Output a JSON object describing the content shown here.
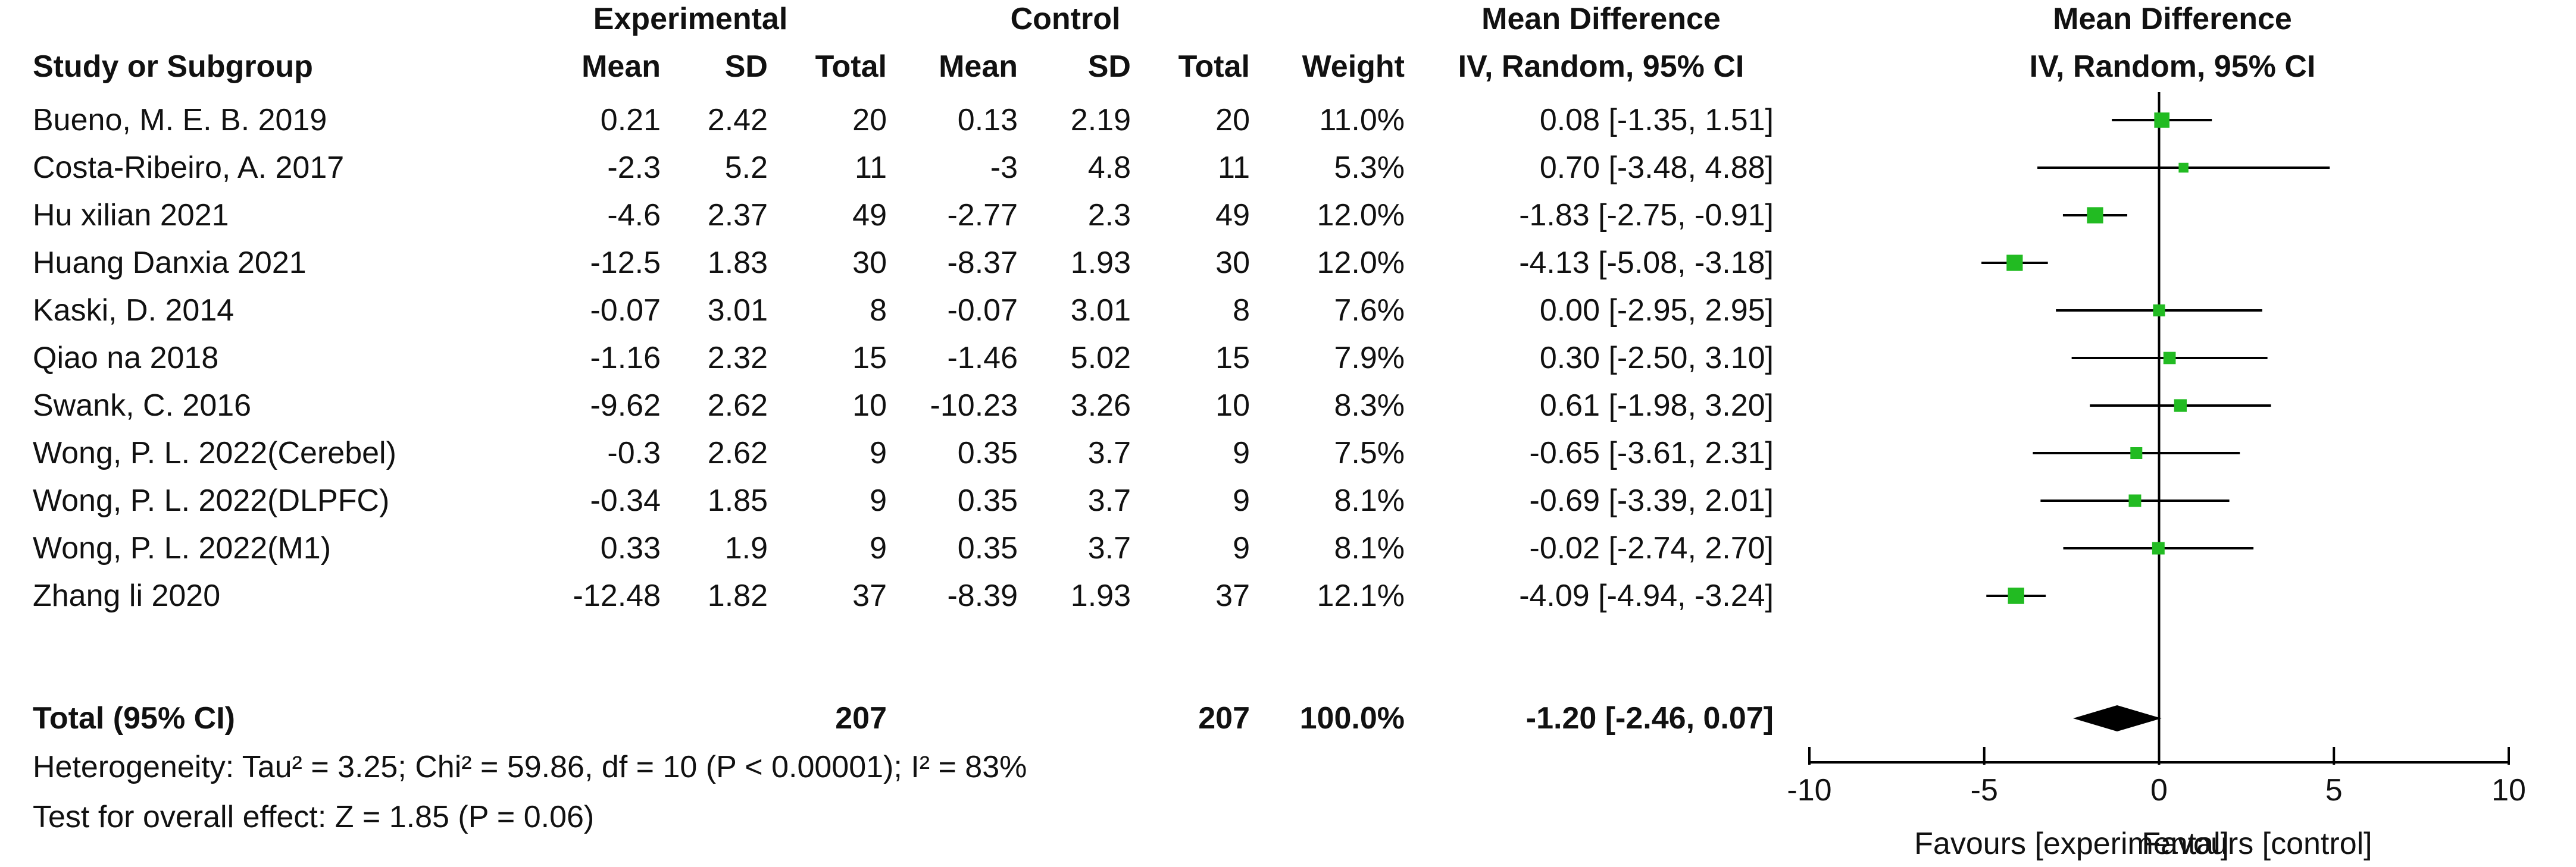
{
  "headers": {
    "group_experimental": "Experimental",
    "group_control": "Control",
    "group_md": "Mean Difference",
    "group_md_plot": "Mean Difference",
    "study": "Study or Subgroup",
    "exp_mean": "Mean",
    "exp_sd": "SD",
    "exp_total": "Total",
    "ctl_mean": "Mean",
    "ctl_sd": "SD",
    "ctl_total": "Total",
    "weight": "Weight",
    "md_method": "IV, Random, 95% CI",
    "md_method_plot": "IV, Random, 95% CI"
  },
  "studies": [
    {
      "name": "Bueno, M. E. B. 2019",
      "exp_mean": "0.21",
      "exp_sd": "2.42",
      "exp_total": "20",
      "ctl_mean": "0.13",
      "ctl_sd": "2.19",
      "ctl_total": "20",
      "weight": "11.0%",
      "ci_text": "0.08 [-1.35, 1.51]"
    },
    {
      "name": "Costa-Ribeiro, A. 2017",
      "exp_mean": "-2.3",
      "exp_sd": "5.2",
      "exp_total": "11",
      "ctl_mean": "-3",
      "ctl_sd": "4.8",
      "ctl_total": "11",
      "weight": "5.3%",
      "ci_text": "0.70 [-3.48, 4.88]"
    },
    {
      "name": "Hu xilian 2021",
      "exp_mean": "-4.6",
      "exp_sd": "2.37",
      "exp_total": "49",
      "ctl_mean": "-2.77",
      "ctl_sd": "2.3",
      "ctl_total": "49",
      "weight": "12.0%",
      "ci_text": "-1.83 [-2.75, -0.91]"
    },
    {
      "name": "Huang Danxia 2021",
      "exp_mean": "-12.5",
      "exp_sd": "1.83",
      "exp_total": "30",
      "ctl_mean": "-8.37",
      "ctl_sd": "1.93",
      "ctl_total": "30",
      "weight": "12.0%",
      "ci_text": "-4.13 [-5.08, -3.18]"
    },
    {
      "name": "Kaski, D. 2014",
      "exp_mean": "-0.07",
      "exp_sd": "3.01",
      "exp_total": "8",
      "ctl_mean": "-0.07",
      "ctl_sd": "3.01",
      "ctl_total": "8",
      "weight": "7.6%",
      "ci_text": "0.00 [-2.95, 2.95]"
    },
    {
      "name": "Qiao na 2018",
      "exp_mean": "-1.16",
      "exp_sd": "2.32",
      "exp_total": "15",
      "ctl_mean": "-1.46",
      "ctl_sd": "5.02",
      "ctl_total": "15",
      "weight": "7.9%",
      "ci_text": "0.30 [-2.50, 3.10]"
    },
    {
      "name": "Swank, C. 2016",
      "exp_mean": "-9.62",
      "exp_sd": "2.62",
      "exp_total": "10",
      "ctl_mean": "-10.23",
      "ctl_sd": "3.26",
      "ctl_total": "10",
      "weight": "8.3%",
      "ci_text": "0.61 [-1.98, 3.20]"
    },
    {
      "name": "Wong, P. L. 2022(Cerebel)",
      "exp_mean": "-0.3",
      "exp_sd": "2.62",
      "exp_total": "9",
      "ctl_mean": "0.35",
      "ctl_sd": "3.7",
      "ctl_total": "9",
      "weight": "7.5%",
      "ci_text": "-0.65 [-3.61, 2.31]"
    },
    {
      "name": "Wong, P. L. 2022(DLPFC)",
      "exp_mean": "-0.34",
      "exp_sd": "1.85",
      "exp_total": "9",
      "ctl_mean": "0.35",
      "ctl_sd": "3.7",
      "ctl_total": "9",
      "weight": "8.1%",
      "ci_text": "-0.69 [-3.39, 2.01]"
    },
    {
      "name": "Wong, P. L. 2022(M1)",
      "exp_mean": "0.33",
      "exp_sd": "1.9",
      "exp_total": "9",
      "ctl_mean": "0.35",
      "ctl_sd": "3.7",
      "ctl_total": "9",
      "weight": "8.1%",
      "ci_text": "-0.02 [-2.74, 2.70]"
    },
    {
      "name": "Zhang li 2020",
      "exp_mean": "-12.48",
      "exp_sd": "1.82",
      "exp_total": "37",
      "ctl_mean": "-8.39",
      "ctl_sd": "1.93",
      "ctl_total": "37",
      "weight": "12.1%",
      "ci_text": "-4.09 [-4.94, -3.24]"
    }
  ],
  "total": {
    "label": "Total (95% CI)",
    "exp_total": "207",
    "ctl_total": "207",
    "weight": "100.0%",
    "ci_text": "-1.20 [-2.46, 0.07]"
  },
  "heterogeneity": "Heterogeneity: Tau² = 3.25; Chi² = 59.86, df = 10 (P < 0.00001); I² = 83%",
  "overall_effect": "Test for overall effect: Z = 1.85 (P = 0.06)",
  "favours_left": "Favours [experimental]",
  "favours_right": "Favours [control]",
  "colors": {
    "marker": "#22bb22",
    "diamond": "#000000",
    "line": "#000000"
  },
  "chart_data": {
    "type": "forest",
    "x_ticks": [
      -10,
      -5,
      0,
      5,
      10
    ],
    "xlim": [
      -10,
      10
    ],
    "studies": [
      {
        "name": "Bueno, M. E. B. 2019",
        "md": 0.08,
        "lower": -1.35,
        "upper": 1.51,
        "weight": 11.0
      },
      {
        "name": "Costa-Ribeiro, A. 2017",
        "md": 0.7,
        "lower": -3.48,
        "upper": 4.88,
        "weight": 5.3
      },
      {
        "name": "Hu xilian 2021",
        "md": -1.83,
        "lower": -2.75,
        "upper": -0.91,
        "weight": 12.0
      },
      {
        "name": "Huang Danxia 2021",
        "md": -4.13,
        "lower": -5.08,
        "upper": -3.18,
        "weight": 12.0
      },
      {
        "name": "Kaski, D. 2014",
        "md": 0.0,
        "lower": -2.95,
        "upper": 2.95,
        "weight": 7.6
      },
      {
        "name": "Qiao na 2018",
        "md": 0.3,
        "lower": -2.5,
        "upper": 3.1,
        "weight": 7.9
      },
      {
        "name": "Swank, C. 2016",
        "md": 0.61,
        "lower": -1.98,
        "upper": 3.2,
        "weight": 8.3
      },
      {
        "name": "Wong, P. L. 2022(Cerebel)",
        "md": -0.65,
        "lower": -3.61,
        "upper": 2.31,
        "weight": 7.5
      },
      {
        "name": "Wong, P. L. 2022(DLPFC)",
        "md": -0.69,
        "lower": -3.39,
        "upper": 2.01,
        "weight": 8.1
      },
      {
        "name": "Wong, P. L. 2022(M1)",
        "md": -0.02,
        "lower": -2.74,
        "upper": 2.7,
        "weight": 8.1
      },
      {
        "name": "Zhang li 2020",
        "md": -4.09,
        "lower": -4.94,
        "upper": -3.24,
        "weight": 12.1
      }
    ],
    "pooled": {
      "md": -1.2,
      "lower": -2.46,
      "upper": 0.07
    }
  }
}
